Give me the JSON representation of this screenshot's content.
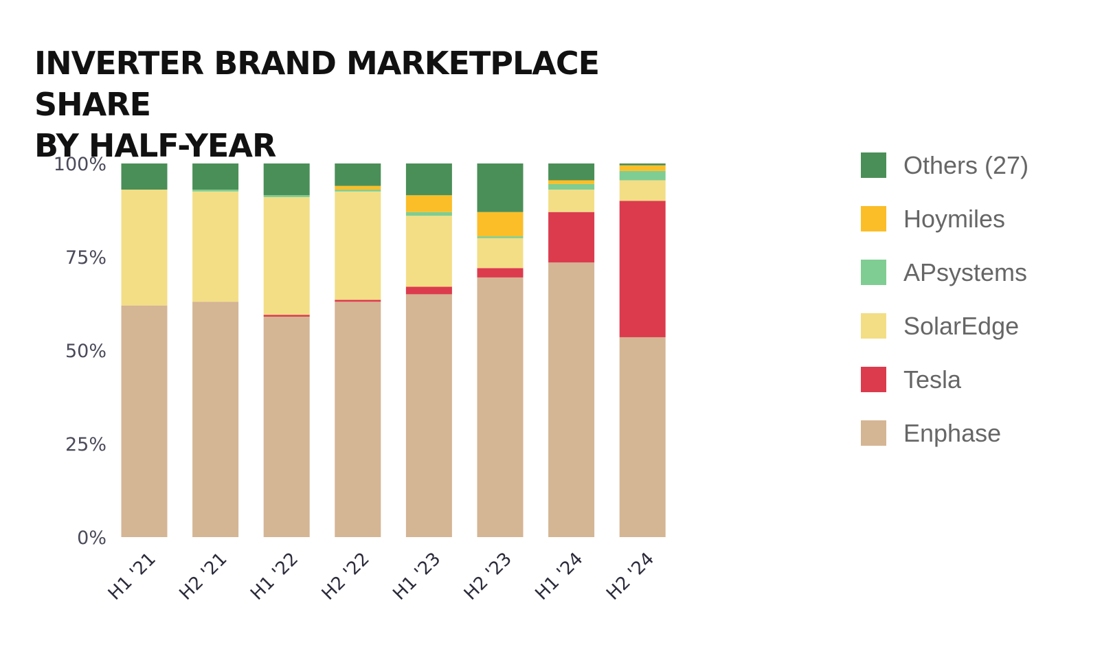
{
  "chart_data": {
    "type": "bar",
    "stacked": true,
    "title_lines": [
      "INVERTER BRAND MARKETPLACE SHARE",
      "BY HALF-YEAR"
    ],
    "categories": [
      "H1 '21",
      "H2 '21",
      "H1 '22",
      "H2 '22",
      "H1 '23",
      "H2 '23",
      "H1 '24",
      "H2 '24"
    ],
    "y_ticks": [
      "0%",
      "25%",
      "50%",
      "75%",
      "100%"
    ],
    "ylim": [
      0,
      100
    ],
    "grid": false,
    "legend_position": "right",
    "series": [
      {
        "name": "Enphase",
        "color": "#D4B594",
        "values": [
          62.0,
          63.0,
          59.0,
          63.0,
          65.0,
          69.5,
          73.5,
          53.5
        ]
      },
      {
        "name": "Tesla",
        "color": "#DC3B4E",
        "values": [
          0.0,
          0.0,
          0.5,
          0.5,
          2.0,
          2.5,
          13.5,
          36.5
        ]
      },
      {
        "name": "SolarEdge",
        "color": "#F3DE86",
        "values": [
          31.0,
          29.5,
          31.5,
          29.0,
          19.0,
          8.0,
          6.0,
          5.5
        ]
      },
      {
        "name": "APsystems",
        "color": "#7FCD92",
        "values": [
          0.0,
          0.5,
          0.5,
          0.5,
          1.0,
          0.5,
          1.5,
          2.5
        ]
      },
      {
        "name": "Hoymiles",
        "color": "#FBBE28",
        "values": [
          0.0,
          0.0,
          0.0,
          1.0,
          4.5,
          6.5,
          1.0,
          1.5
        ]
      },
      {
        "name": "Others (27)",
        "color": "#4A8F57",
        "values": [
          7.0,
          7.0,
          8.5,
          6.0,
          8.5,
          13.0,
          4.5,
          0.5
        ]
      }
    ],
    "legend_order": [
      "Others (27)",
      "Hoymiles",
      "APsystems",
      "SolarEdge",
      "Tesla",
      "Enphase"
    ]
  }
}
